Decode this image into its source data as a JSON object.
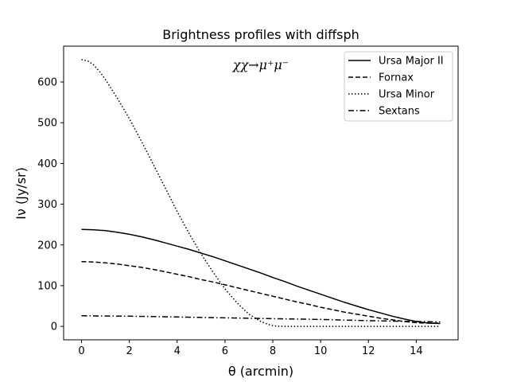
{
  "chart_data": {
    "type": "line",
    "title": "Brightness profiles with diffsph",
    "xlabel": "θ (arcmin)",
    "ylabel": "Iν (Jy/sr)",
    "annotation": "χχ→μ⁺μ⁻",
    "xlim": [
      -0.75,
      15.75
    ],
    "ylim": [
      -33,
      688
    ],
    "xticks": [
      0,
      2,
      4,
      6,
      8,
      10,
      12,
      14
    ],
    "yticks": [
      0,
      100,
      200,
      300,
      400,
      500,
      600
    ],
    "grid": false,
    "legend_position": "top-right",
    "series": [
      {
        "name": "Ursa Major II",
        "style": "solid",
        "x": [
          0,
          0.5,
          1,
          1.5,
          2,
          2.5,
          3,
          3.5,
          4,
          4.5,
          5,
          5.5,
          6,
          6.5,
          7,
          7.5,
          8,
          8.5,
          9,
          9.5,
          10,
          10.5,
          11,
          11.5,
          12,
          12.5,
          13,
          13.5,
          14,
          14.5,
          15
        ],
        "y": [
          238,
          237,
          235,
          231,
          226,
          220,
          213,
          205,
          197,
          189,
          180,
          171,
          161,
          151,
          141,
          131,
          120,
          110,
          99,
          89,
          79,
          69,
          59,
          50,
          41,
          33,
          25,
          18,
          12,
          8,
          7
        ]
      },
      {
        "name": "Fornax",
        "style": "dashed",
        "x": [
          0,
          0.5,
          1,
          1.5,
          2,
          2.5,
          3,
          3.5,
          4,
          4.5,
          5,
          5.5,
          6,
          6.5,
          7,
          7.5,
          8,
          8.5,
          9,
          9.5,
          10,
          10.5,
          11,
          11.5,
          12,
          12.5,
          13,
          13.5,
          14,
          14.5,
          15
        ],
        "y": [
          159,
          158,
          156,
          153,
          149,
          145,
          140,
          134,
          128,
          122,
          115,
          109,
          102,
          95,
          88,
          81,
          74,
          67,
          60,
          54,
          47,
          41,
          35,
          30,
          25,
          20,
          16,
          12,
          9,
          8,
          8
        ]
      },
      {
        "name": "Ursa Minor",
        "style": "dotted",
        "x": [
          0,
          0.25,
          0.5,
          0.75,
          1,
          1.5,
          2,
          2.5,
          3,
          3.5,
          4,
          4.5,
          5,
          5.5,
          6,
          6.5,
          7,
          7.5,
          7.8,
          8,
          8.2,
          8.5,
          9,
          10,
          11,
          12,
          13,
          14,
          15
        ],
        "y": [
          655,
          652,
          642,
          626,
          606,
          560,
          510,
          455,
          398,
          340,
          282,
          228,
          178,
          133,
          92,
          58,
          30,
          12,
          5,
          2,
          0.5,
          0,
          0,
          0,
          0,
          0,
          0,
          0,
          0
        ]
      },
      {
        "name": "Sextans",
        "style": "dashdot",
        "x": [
          0,
          1,
          2,
          3,
          4,
          5,
          6,
          7,
          8,
          9,
          10,
          11,
          12,
          13,
          14,
          15
        ],
        "y": [
          26,
          25.5,
          25,
          24,
          23,
          22,
          21,
          20,
          19,
          18,
          17,
          15.5,
          14,
          13,
          12,
          11
        ]
      }
    ]
  }
}
